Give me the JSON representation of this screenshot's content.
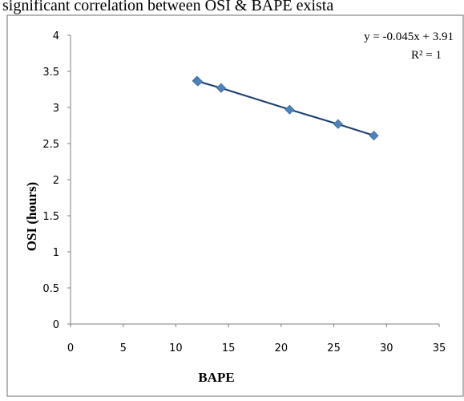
{
  "header_text": "significant correlation between OSI & BAPE exista",
  "chart_data": {
    "type": "scatter",
    "title": "",
    "xlabel": "BAPE",
    "ylabel": "OSI (hours)",
    "xlim": [
      0,
      35
    ],
    "ylim": [
      0,
      4
    ],
    "x_ticks": [
      0,
      5,
      10,
      15,
      20,
      25,
      30,
      35
    ],
    "y_ticks": [
      0,
      0.5,
      1,
      1.5,
      2,
      2.5,
      3,
      3.5,
      4
    ],
    "y_tick_labels": [
      "0",
      "0.5",
      "1",
      "1.5",
      "2",
      "2.5",
      "3",
      "3.5",
      "4"
    ],
    "series": [
      {
        "x": [
          12,
          12.1,
          14.3,
          20.8,
          25.4,
          28.8
        ],
        "y": [
          3.37,
          3.36,
          3.27,
          2.97,
          2.77,
          2.61
        ],
        "marker": "diamond",
        "color": "#4f81bd"
      }
    ],
    "trendline": {
      "type": "linear",
      "x_range": [
        12,
        28.8
      ],
      "slope": -0.045,
      "intercept": 3.91,
      "color": "#1f3864"
    },
    "annotations": {
      "equation": "y = -0.045x + 3.91",
      "r2": "R² = 1"
    },
    "grid": false,
    "legend": "none"
  }
}
